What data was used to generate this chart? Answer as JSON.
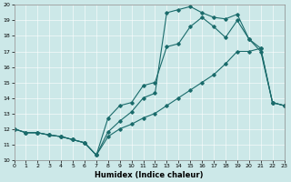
{
  "xlabel": "Humidex (Indice chaleur)",
  "xlim": [
    0,
    23
  ],
  "ylim": [
    10,
    20
  ],
  "xticks": [
    0,
    1,
    2,
    3,
    4,
    5,
    6,
    7,
    8,
    9,
    10,
    11,
    12,
    13,
    14,
    15,
    16,
    17,
    18,
    19,
    20,
    21,
    22,
    23
  ],
  "yticks": [
    10,
    11,
    12,
    13,
    14,
    15,
    16,
    17,
    18,
    19,
    20
  ],
  "bg_color": "#cce8e8",
  "line_color": "#1a6b6b",
  "line1_x": [
    0,
    1,
    2,
    3,
    4,
    5,
    6,
    7,
    8,
    9,
    10,
    11,
    12,
    13,
    14,
    15,
    16,
    17,
    18,
    19,
    20,
    21,
    22,
    23
  ],
  "line1_y": [
    12.0,
    11.75,
    11.75,
    11.6,
    11.5,
    11.3,
    11.1,
    10.3,
    12.7,
    13.5,
    13.7,
    14.8,
    15.0,
    17.3,
    17.5,
    18.6,
    19.2,
    18.6,
    17.9,
    19.0,
    17.8,
    17.0,
    13.7,
    13.5
  ],
  "line2_x": [
    0,
    1,
    2,
    3,
    4,
    5,
    6,
    7,
    8,
    9,
    10,
    11,
    12,
    13,
    14,
    15,
    16,
    17,
    18,
    19,
    20,
    21,
    22,
    23
  ],
  "line2_y": [
    12.0,
    11.75,
    11.75,
    11.6,
    11.5,
    11.3,
    11.1,
    10.3,
    11.5,
    12.0,
    12.3,
    12.7,
    13.0,
    13.5,
    14.0,
    14.5,
    15.0,
    15.5,
    16.2,
    17.0,
    17.0,
    17.2,
    13.7,
    13.5
  ],
  "line3_x": [
    0,
    1,
    2,
    3,
    4,
    5,
    6,
    7,
    8,
    9,
    10,
    11,
    12,
    13,
    14,
    15,
    16,
    17,
    18,
    19,
    20,
    21,
    22,
    23
  ],
  "line3_y": [
    12.0,
    11.75,
    11.75,
    11.6,
    11.5,
    11.3,
    11.1,
    10.3,
    11.8,
    12.5,
    13.1,
    14.0,
    14.3,
    19.5,
    19.7,
    19.9,
    19.5,
    19.2,
    19.1,
    19.4,
    17.8,
    17.2,
    13.7,
    13.5
  ]
}
